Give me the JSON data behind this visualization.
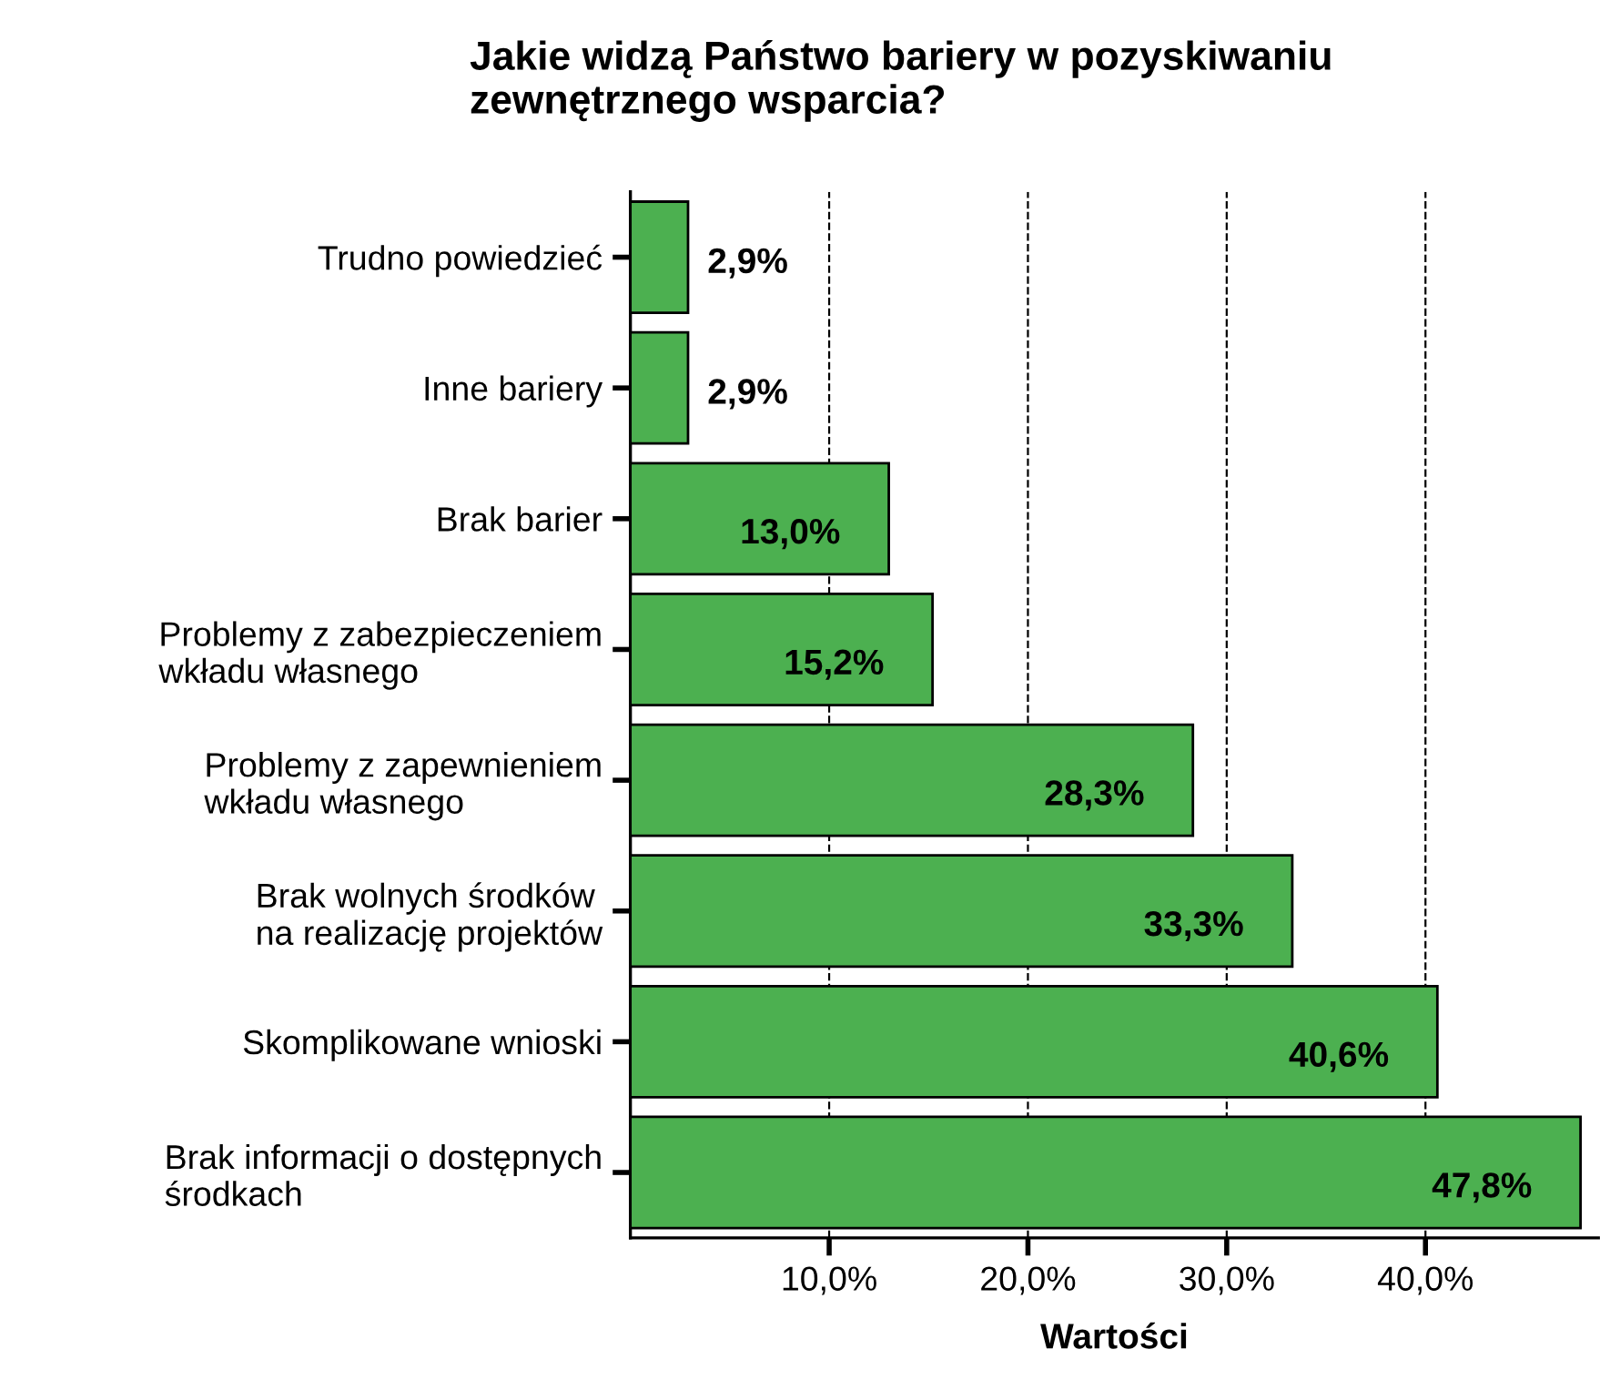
{
  "chart_data": {
    "type": "bar",
    "orientation": "horizontal",
    "title": "Jakie widzą Państwo bariery w pozyskiwaniu\nzewnętrznego wsparcia?",
    "xlabel": "Wartości",
    "categories": [
      "Trudno powiedzieć",
      "Inne bariery",
      "Brak barier",
      "Problemy z zabezpieczeniem\nwkładu własnego",
      "Problemy z zapewnieniem\nwkładu własnego",
      "Brak wolnych środków\nna realizację projektów",
      "Skomplikowane wnioski",
      "Brak informacji o dostępnych\nśrodkach"
    ],
    "values": [
      2.9,
      2.9,
      13.0,
      15.2,
      28.3,
      33.3,
      40.6,
      47.8
    ],
    "value_labels": [
      "2,9%",
      "2,9%",
      "13,0%",
      "15,2%",
      "28,3%",
      "33,3%",
      "40,6%",
      "47,8%"
    ],
    "color": "#4cb050",
    "xlim": [
      0,
      48.7
    ],
    "xticks": [
      {
        "value": 10,
        "label": "10,0%"
      },
      {
        "value": 20,
        "label": "20,0%"
      },
      {
        "value": 30,
        "label": "30,0%"
      },
      {
        "value": 40,
        "label": "40,0%"
      }
    ],
    "grid": "x",
    "legend": false
  }
}
